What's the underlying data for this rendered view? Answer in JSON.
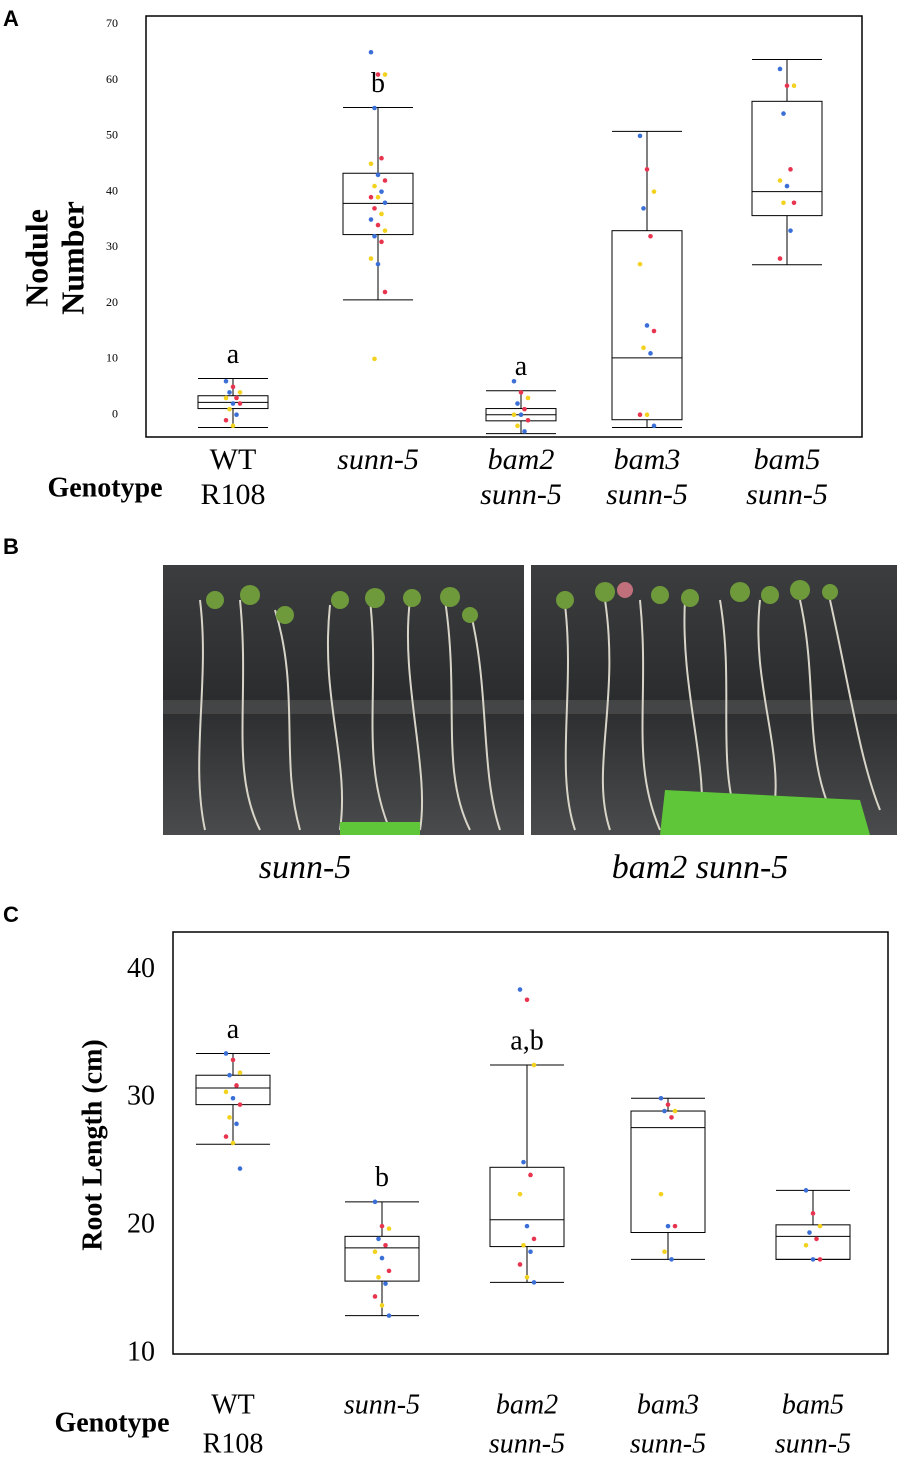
{
  "chart_data": [
    {
      "type": "box",
      "panel_label": "A",
      "y_label": [
        "Nodule",
        "Number"
      ],
      "x_label": "Genotype",
      "categories": [
        [
          "WT",
          "R108"
        ],
        [
          "sunn-5"
        ],
        [
          "bam2",
          "sunn-5"
        ],
        [
          "bam3",
          "sunn-5"
        ],
        [
          "bam5",
          "sunn-5"
        ]
      ],
      "boxes": [
        {
          "min": -2.3,
          "q1": 1.1,
          "median": 2.2,
          "q3": 3.4,
          "max": 6.5
        },
        {
          "min": 20.6,
          "q1": 32.3,
          "median": 37.9,
          "q3": 43.3,
          "max": 55.1
        },
        {
          "min": -3.4,
          "q1": -1.1,
          "median": 0,
          "q3": 1.1,
          "max": 4.3
        },
        {
          "min": -2.3,
          "q1": -0.9,
          "median": 10.2,
          "q3": 33.0,
          "max": 50.8
        },
        {
          "min": 26.9,
          "q1": 35.7,
          "median": 40.0,
          "q3": 56.2,
          "max": 63.7
        }
      ],
      "points": [
        [
          6,
          5,
          4,
          4,
          3,
          3,
          2,
          2,
          1,
          0,
          -1,
          -2
        ],
        [
          65,
          61,
          61,
          55,
          46,
          45,
          43,
          42,
          41,
          40,
          39,
          39,
          38,
          37,
          36,
          35,
          34,
          33,
          32,
          31,
          28,
          27,
          22,
          10
        ],
        [
          6,
          4,
          3,
          2,
          1,
          0,
          0,
          -1,
          -2,
          -3
        ],
        [
          50,
          44,
          40,
          37,
          32,
          27,
          16,
          15,
          12,
          11,
          0,
          0,
          -2
        ],
        [
          62,
          59,
          59,
          54,
          44,
          42,
          41,
          38,
          38,
          33,
          28
        ]
      ],
      "group_labels": [
        "a",
        "b",
        "a",
        null,
        null
      ],
      "point_colors": [
        "#3a6fd8",
        "#e8344e",
        "#f3d21d"
      ],
      "color": "#000000",
      "ylim": [
        -4,
        71.5
      ],
      "yticks": [
        0,
        10,
        20,
        30,
        40,
        50,
        60,
        70
      ]
    },
    {
      "type": "box",
      "panel_label": "C",
      "y_label": [
        "Root Length (cm)"
      ],
      "x_label": "Genotype",
      "categories": [
        [
          "WT",
          "R108"
        ],
        [
          "sunn-5"
        ],
        [
          "bam2",
          "sunn-5"
        ],
        [
          "bam3",
          "sunn-5"
        ],
        [
          "bam5",
          "sunn-5"
        ]
      ],
      "boxes": [
        {
          "min": 26.4,
          "q1": 29.5,
          "median": 30.8,
          "q3": 31.8,
          "max": 33.5
        },
        {
          "min": 13.0,
          "q1": 15.7,
          "median": 18.3,
          "q3": 19.2,
          "max": 21.9
        },
        {
          "min": 15.6,
          "q1": 18.4,
          "median": 20.5,
          "q3": 24.6,
          "max": 32.6
        },
        {
          "min": 17.4,
          "q1": 19.5,
          "median": 27.7,
          "q3": 29.0,
          "max": 30.0
        },
        {
          "min": 17.4,
          "q1": 17.4,
          "median": 19.2,
          "q3": 20.1,
          "max": 22.8
        }
      ],
      "points": [
        [
          33.5,
          33,
          32,
          31.8,
          31,
          30.5,
          30,
          29.5,
          28.5,
          28,
          27,
          26.5,
          24.5
        ],
        [
          21.9,
          20,
          19.8,
          19,
          18.5,
          18,
          17.5,
          16.5,
          16,
          15.5,
          14.5,
          13.8,
          13
        ],
        [
          38.5,
          37.7,
          32.6,
          25,
          24,
          22.5,
          20,
          19,
          18.5,
          18,
          17,
          16,
          15.6
        ],
        [
          30,
          29.5,
          29,
          29,
          28.5,
          22.5,
          20,
          20,
          18,
          17.4
        ],
        [
          22.8,
          21,
          20,
          19.5,
          19,
          18.5,
          17.4,
          17.4
        ]
      ],
      "group_labels": [
        "a",
        "b",
        "a,b",
        null,
        null
      ],
      "point_colors": [
        "#3a6fd8",
        "#e8344e",
        "#f3d21d"
      ],
      "color": "#000000",
      "ylim": [
        10,
        43
      ],
      "yticks": [
        10,
        20,
        30,
        40
      ]
    }
  ],
  "photo_panel": {
    "panel_label": "B",
    "captions": [
      "sunn-5",
      "bam2 sunn-5"
    ]
  }
}
